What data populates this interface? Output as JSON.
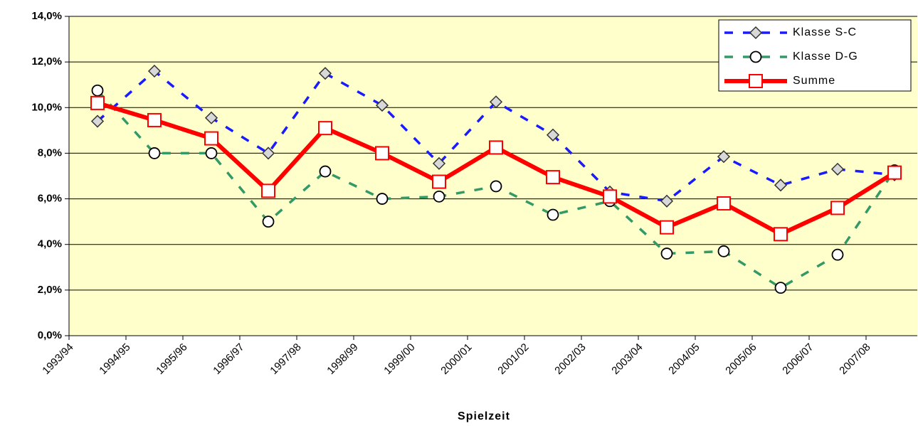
{
  "chart_data": {
    "type": "line",
    "x_label": "Spielzeit",
    "categories": [
      "1993/94",
      "1994/95",
      "1995/96",
      "1996/97",
      "1997/98",
      "1998/99",
      "1999/00",
      "2000/01",
      "2001/02",
      "2002/03",
      "2003/04",
      "2004/05",
      "2005/06",
      "2006/07",
      "2007/08"
    ],
    "series": [
      {
        "name": "Klasse S-C",
        "color": "#1a1aff",
        "line_style": "dashed",
        "marker": "diamond",
        "values": [
          9.4,
          11.6,
          9.55,
          8.0,
          11.5,
          10.1,
          7.55,
          10.25,
          8.8,
          6.3,
          5.9,
          7.85,
          6.6,
          7.3,
          7.05
        ]
      },
      {
        "name": "Klasse D-G",
        "color": "#339966",
        "line_style": "dashed",
        "marker": "circle",
        "values": [
          10.75,
          8.0,
          8.0,
          5.0,
          7.2,
          6.0,
          6.1,
          6.55,
          5.3,
          5.9,
          3.6,
          3.7,
          2.1,
          3.55,
          7.25
        ]
      },
      {
        "name": "Summe",
        "color": "#ff0000",
        "line_style": "solid",
        "marker": "square",
        "values": [
          10.2,
          9.45,
          8.65,
          6.35,
          9.1,
          8.0,
          6.75,
          8.25,
          6.95,
          6.1,
          4.75,
          5.8,
          4.45,
          5.6,
          7.15
        ]
      }
    ],
    "ylim": [
      0,
      14
    ],
    "yticks": [
      {
        "value": 0,
        "label": "0,0%"
      },
      {
        "value": 2,
        "label": "2,0%"
      },
      {
        "value": 4,
        "label": "4,0%"
      },
      {
        "value": 6,
        "label": "6,0%"
      },
      {
        "value": 8,
        "label": "8,0%"
      },
      {
        "value": 10,
        "label": "10,0%"
      },
      {
        "value": 12,
        "label": "12,0%"
      },
      {
        "value": 14,
        "label": "14,0%"
      }
    ],
    "grid": true,
    "legend": "top-right"
  }
}
